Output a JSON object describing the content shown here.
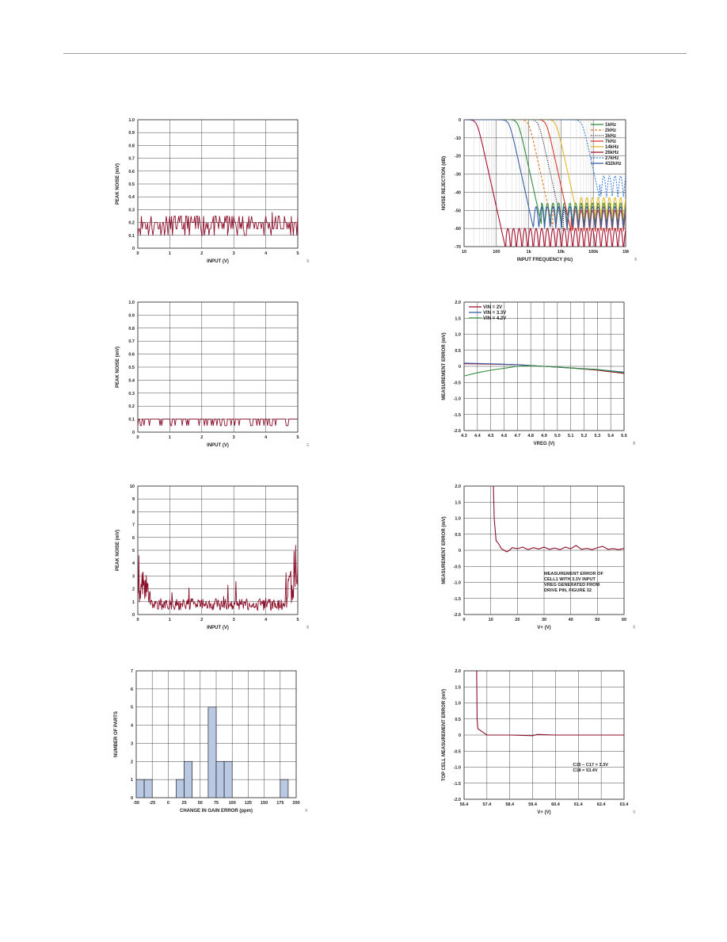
{
  "chart_data": [
    {
      "id": "c1",
      "type": "line",
      "xlabel": "INPUT (V)",
      "ylabel": "PEAK NOISE (mV)",
      "xlim": [
        0,
        5
      ],
      "ylim": [
        0,
        1.0
      ],
      "xticks": [
        0,
        1,
        2,
        3,
        4,
        5
      ],
      "yticks": [
        0,
        0.1,
        0.2,
        0.3,
        0.4,
        0.5,
        0.6,
        0.7,
        0.8,
        0.9,
        1.0
      ],
      "ytick_labels": [
        "0",
        "0.1",
        "0.2",
        "0.3",
        "0.4",
        "0.5",
        "0.6",
        "0.7",
        "0.8",
        "0.9",
        "1.0"
      ],
      "fig_id": "05",
      "series": [
        {
          "color": "#8b0f2a",
          "noise": {
            "n": 180,
            "levels": [
              0.1,
              0.15,
              0.2,
              0.25
            ],
            "weights": [
              0.15,
              0.3,
              0.35,
              0.2
            ],
            "spikes": [
              [
                1.0,
                0.25
              ],
              [
                2.8,
                0.25
              ],
              [
                4.2,
                0.28
              ],
              [
                4.8,
                0.25
              ]
            ]
          }
        }
      ]
    },
    {
      "id": "c2",
      "type": "line",
      "xlabel": "INPUT FREQUENCY (Hz)",
      "ylabel": "NOISE REJECTION (dB)",
      "xscale": "log",
      "xlim": [
        10,
        1000000
      ],
      "ylim": [
        -70,
        0
      ],
      "xticks": [
        10,
        100,
        1000,
        10000,
        100000,
        1000000
      ],
      "xtick_labels": [
        "10",
        "100",
        "1k",
        "10k",
        "100k",
        "1M"
      ],
      "yticks": [
        0,
        -10,
        -20,
        -30,
        -40,
        -50,
        -60,
        -70
      ],
      "ytick_labels": [
        "0",
        "-10",
        "-20",
        "-30",
        "-40",
        "-50",
        "-60",
        "-70"
      ],
      "fig_id": "06",
      "legend": "top-right",
      "series": [
        {
          "name": "1kHz",
          "color": "#2e8b3e",
          "dash": "",
          "cutoff": 470,
          "floor": -58
        },
        {
          "name": "2kHz",
          "color": "#e07b20",
          "dash": "3,2",
          "cutoff": 1000,
          "floor": -60
        },
        {
          "name": "3kHz",
          "color": "#111111",
          "dash": "1,1.5",
          "cutoff": 2000,
          "floor": -62
        },
        {
          "name": "7kHz",
          "color": "#d93a2b",
          "dash": "",
          "cutoff": 3500,
          "floor": -62
        },
        {
          "name": "14kHz",
          "color": "#e3b72b",
          "dash": "",
          "cutoff": 7000,
          "floor": -55
        },
        {
          "name": "26kHz",
          "color": "#a8102e",
          "dash": "",
          "cutoff": 25,
          "floor": -72
        },
        {
          "name": "27kHz",
          "color": "#3f7fd8",
          "dash": "2,1.5",
          "cutoff": 45000,
          "floor": -43
        },
        {
          "name": "432kHz",
          "color": "#3a5fa8",
          "dash": "",
          "cutoff": 250,
          "floor": -60
        }
      ]
    },
    {
      "id": "c3",
      "type": "line",
      "xlabel": "INPUT (V)",
      "ylabel": "PEAK NOISE (mV)",
      "xlim": [
        0,
        5
      ],
      "ylim": [
        0,
        1.0
      ],
      "xticks": [
        0,
        1,
        2,
        3,
        4,
        5
      ],
      "yticks": [
        0,
        0.1,
        0.2,
        0.3,
        0.4,
        0.5,
        0.6,
        0.7,
        0.8,
        0.9,
        1.0
      ],
      "ytick_labels": [
        "0",
        "0.1",
        "0.2",
        "0.3",
        "0.4",
        "0.5",
        "0.6",
        "0.7",
        "0.8",
        "0.9",
        "1.0"
      ],
      "fig_id": "07",
      "series": [
        {
          "color": "#8b0f2a",
          "noise": {
            "n": 180,
            "levels": [
              0.05,
              0.1
            ],
            "weights": [
              0.25,
              0.75
            ],
            "spikes": []
          }
        }
      ]
    },
    {
      "id": "c4",
      "type": "line",
      "xlabel": "VREG (V)",
      "ylabel": "MEASUREMENT ERROR (mV)",
      "xlim": [
        4.3,
        5.5
      ],
      "ylim": [
        -2.0,
        2.0
      ],
      "xticks": [
        4.3,
        4.4,
        4.5,
        4.6,
        4.7,
        4.8,
        4.9,
        5.0,
        5.1,
        5.2,
        5.3,
        5.4,
        5.5
      ],
      "xtick_labels": [
        "4.3",
        "4.4",
        "4.5",
        "4.6",
        "4.7",
        "4.8",
        "4.9",
        "5.0",
        "5.1",
        "5.2",
        "5.3",
        "5.4",
        "5.5"
      ],
      "yticks": [
        2.0,
        1.5,
        1.0,
        0.5,
        0,
        -0.5,
        -1.0,
        -1.5,
        -2.0
      ],
      "ytick_labels": [
        "2.0",
        "1.5",
        "1.0",
        "0.5",
        "0",
        "-0.5",
        "-1.0",
        "-1.5",
        "-2.0"
      ],
      "fig_id": "08",
      "legend": "top-left",
      "series": [
        {
          "name": "VIN = 2V",
          "color": "#a8102e",
          "x": [
            4.3,
            4.5,
            4.7,
            4.9,
            5.1,
            5.3,
            5.5
          ],
          "y": [
            0.08,
            0.07,
            0.05,
            0.0,
            -0.05,
            -0.12,
            -0.22
          ]
        },
        {
          "name": "VIN = 3.3V",
          "color": "#3a5fa8",
          "x": [
            4.3,
            4.5,
            4.7,
            4.9,
            5.1,
            5.3,
            5.5
          ],
          "y": [
            0.1,
            0.08,
            0.05,
            0.0,
            -0.05,
            -0.1,
            -0.18
          ]
        },
        {
          "name": "VIN = 4.2V",
          "color": "#2e8b3e",
          "x": [
            4.3,
            4.4,
            4.5,
            4.6,
            4.7,
            4.8,
            4.9,
            5.1,
            5.3,
            5.5
          ],
          "y": [
            -0.3,
            -0.2,
            -0.12,
            -0.06,
            0.0,
            0.02,
            0.0,
            -0.05,
            -0.1,
            -0.2
          ]
        }
      ]
    },
    {
      "id": "c5",
      "type": "line",
      "xlabel": "INPUT (V)",
      "ylabel": "PEAK NOISE (mV)",
      "xlim": [
        0,
        5
      ],
      "ylim": [
        0,
        10
      ],
      "xticks": [
        0,
        1,
        2,
        3,
        4,
        5
      ],
      "yticks": [
        0,
        1,
        2,
        3,
        4,
        5,
        6,
        7,
        8,
        9,
        10
      ],
      "fig_id": "09",
      "series": [
        {
          "color": "#8b0f2a",
          "noise": {
            "n": 300,
            "base": 0.6,
            "amp": 0.9,
            "edge": true
          }
        }
      ]
    },
    {
      "id": "c6",
      "type": "line",
      "xlabel": "V+ (V)",
      "ylabel": "MEASUREMENT ERROR (mV)",
      "xlim": [
        0,
        60
      ],
      "ylim": [
        -2.0,
        2.0
      ],
      "xticks": [
        0,
        10,
        20,
        30,
        40,
        50,
        60
      ],
      "yticks": [
        2.0,
        1.5,
        1.0,
        0.5,
        0,
        -0.5,
        -1.0,
        -1.5,
        -2.0
      ],
      "ytick_labels": [
        "2.0",
        "1.5",
        "1.0",
        "0.5",
        "0",
        "-0.5",
        "-1.0",
        "-1.5",
        "-2.0"
      ],
      "fig_id": "10",
      "annotation": [
        "MEASUREMENT ERROR OF",
        "CELL1 WITH 3.3V INPUT",
        "VREG GENERATED FROM",
        "DRIVE PIN, FIGURE 32"
      ],
      "series": [
        {
          "color": "#8b0f2a",
          "x": [
            11,
            11.3,
            11.7,
            12,
            13,
            14,
            15,
            16,
            17,
            18,
            20,
            22,
            24,
            26,
            28,
            30,
            32,
            34,
            36,
            38,
            40,
            42,
            44,
            46,
            48,
            50,
            52,
            54,
            56,
            58,
            60
          ],
          "y": [
            2.0,
            1.0,
            0.6,
            0.3,
            0.2,
            0.05,
            0.0,
            -0.05,
            0.0,
            0.08,
            0.05,
            0.1,
            0.02,
            0.08,
            0.04,
            0.1,
            0.03,
            0.07,
            0.02,
            0.1,
            0.05,
            0.15,
            0.03,
            0.06,
            0.02,
            0.08,
            0.12,
            0.03,
            0.05,
            0.02,
            0.06
          ]
        }
      ]
    },
    {
      "id": "c7",
      "type": "bar",
      "xlabel": "CHANGE IN GAIN ERROR (ppm)",
      "ylabel": "NUMBER OF PARTS",
      "xlim": [
        -50,
        200
      ],
      "ylim": [
        0,
        7
      ],
      "xticks": [
        -50,
        -25,
        0,
        25,
        50,
        75,
        100,
        125,
        150,
        175,
        200
      ],
      "yticks": [
        0,
        1,
        2,
        3,
        4,
        5,
        6,
        7
      ],
      "fig_id": "11",
      "bins": [
        [
          -50,
          -37.5
        ],
        [
          -37.5,
          -25
        ],
        [
          -25,
          0
        ],
        [
          12.5,
          25
        ],
        [
          25,
          37.5
        ],
        [
          37.5,
          50
        ],
        [
          62.5,
          75
        ],
        [
          75,
          87.5
        ],
        [
          87.5,
          100
        ],
        [
          112.5,
          125
        ],
        [
          125,
          137.5
        ],
        [
          175,
          187.5
        ]
      ],
      "bars": [
        {
          "x0": -50,
          "x1": -37.5,
          "value": 1
        },
        {
          "x0": -37.5,
          "x1": -25,
          "value": 1
        },
        {
          "x0": 12.5,
          "x1": 25,
          "value": 1
        },
        {
          "x0": 25,
          "x1": 37.5,
          "value": 2
        },
        {
          "x0": 62.5,
          "x1": 75,
          "value": 5
        },
        {
          "x0": 75,
          "x1": 87.5,
          "value": 2
        },
        {
          "x0": 87.5,
          "x1": 100,
          "value": 2
        },
        {
          "x0": 175,
          "x1": 187.5,
          "value": 1
        }
      ],
      "bar_color": "#b9c9e4"
    },
    {
      "id": "c8",
      "type": "line",
      "xlabel": "V+ (V)",
      "ylabel": "TOP CELL MEASUREMENT ERROR (mV)",
      "xlim": [
        56.4,
        63.4
      ],
      "ylim": [
        -2.0,
        2.0
      ],
      "xticks": [
        56.4,
        57.4,
        58.4,
        59.4,
        60.4,
        61.4,
        62.4,
        63.4
      ],
      "xtick_labels": [
        "56.4",
        "57.4",
        "58.4",
        "59.4",
        "60.4",
        "61.4",
        "62.4",
        "63.4"
      ],
      "yticks": [
        2.0,
        1.5,
        1.0,
        0.5,
        0,
        -0.5,
        -1.0,
        -1.5,
        -2.0
      ],
      "ytick_labels": [
        "2.0",
        "1.5",
        "1.0",
        "0.5",
        "0",
        "-0.5",
        "-1.0",
        "-1.5",
        "-2.0"
      ],
      "fig_id": "12",
      "annotation": [
        "C15 – C17 = 3.3V",
        "C18 = 53.4V"
      ],
      "series": [
        {
          "color": "#8b0f2a",
          "x": [
            56.95,
            56.97,
            57.0,
            57.3,
            57.4,
            58.4,
            59.4,
            59.6,
            60.4,
            61.4,
            62.4,
            63.4
          ],
          "y": [
            2.0,
            0.5,
            0.2,
            0.05,
            0.0,
            0.0,
            -0.02,
            0.02,
            0.0,
            0.0,
            0.0,
            0.0
          ]
        }
      ]
    }
  ]
}
